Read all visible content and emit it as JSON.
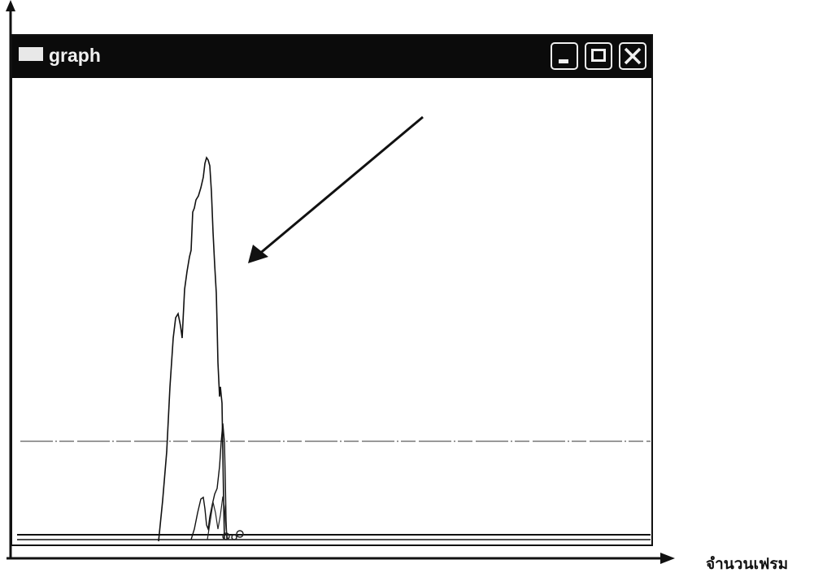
{
  "window": {
    "title": "graph",
    "controls": [
      "minimize-icon",
      "maximize-icon",
      "close-icon"
    ]
  },
  "axes": {
    "x_label": "จำนวนเฟรม",
    "y_label": ""
  },
  "colors": {
    "titlebar": "#0b0b0b",
    "line": "#111111",
    "background": "#ffffff"
  }
}
